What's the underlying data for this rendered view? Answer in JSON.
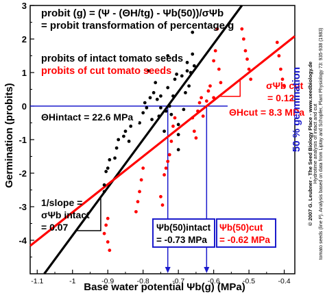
{
  "chart_data": {
    "type": "scatter",
    "xlabel": "Base water potential Ψb(g) (MPa)",
    "ylabel": "Germination (probits)",
    "right_axis_label": "50 % germination",
    "xlim": [
      -1.12,
      -0.37
    ],
    "ylim": [
      -5,
      3
    ],
    "x_ticks": [
      -1.1,
      -1.0,
      -0.9,
      -0.8,
      -0.7,
      -0.6,
      -0.5,
      -0.4
    ],
    "y_ticks": [
      -4,
      -3,
      -2,
      -1,
      0,
      1,
      2,
      3
    ],
    "x_tick_labels": [
      "-1.1",
      "-1",
      "-0.9",
      "-0.8",
      "-0.7",
      "-0.6",
      "-0.5",
      "-0.4"
    ],
    "y_tick_labels": [
      "-4",
      "-3",
      "-2",
      "-1",
      "0",
      "1",
      "2",
      "3"
    ],
    "grid": false,
    "equation_lines": [
      "probit (g) = (Ψ - (ΘH/tg) - Ψb(50))/σΨb",
      "= probit transformation of percentage g"
    ],
    "series": [
      {
        "name": "probits of intact tomato seeds",
        "color": "#000000",
        "points": [
          [
            -0.91,
            -2.55
          ],
          [
            -0.91,
            -2.35
          ],
          [
            -0.905,
            -1.95
          ],
          [
            -0.9,
            -1.85
          ],
          [
            -0.895,
            -1.6
          ],
          [
            -0.88,
            -1.55
          ],
          [
            -0.875,
            -1.25
          ],
          [
            -0.87,
            -1.0
          ],
          [
            -0.855,
            -0.9
          ],
          [
            -0.85,
            -0.75
          ],
          [
            -0.84,
            -1.05
          ],
          [
            -0.835,
            -0.6
          ],
          [
            -0.83,
            -0.45
          ],
          [
            -0.82,
            -0.35
          ],
          [
            -0.81,
            -0.5
          ],
          [
            -0.8,
            -0.2
          ],
          [
            -0.795,
            0.1
          ],
          [
            -0.79,
            -0.05
          ],
          [
            -0.78,
            0.25
          ],
          [
            -0.775,
            -0.4
          ],
          [
            -0.77,
            0.4
          ],
          [
            -0.76,
            0.2
          ],
          [
            -0.755,
            -0.3
          ],
          [
            -0.75,
            -0.05
          ],
          [
            -0.74,
            -0.75
          ],
          [
            -0.735,
            -0.15
          ],
          [
            -0.73,
            0.55
          ],
          [
            -0.725,
            0.0
          ],
          [
            -0.72,
            -0.25
          ],
          [
            -0.715,
            0.3
          ],
          [
            -0.71,
            0.8
          ],
          [
            -0.705,
            0.95
          ],
          [
            -0.7,
            -0.55
          ],
          [
            -0.7,
            -0.85
          ],
          [
            -0.7,
            -1.3
          ],
          [
            -0.685,
            -0.1
          ],
          [
            -0.68,
            0.4
          ],
          [
            -0.675,
            1.3
          ],
          [
            -0.675,
            1.05
          ],
          [
            -0.67,
            0.6
          ],
          [
            -0.665,
            1.0
          ],
          [
            -0.66,
            2.2
          ],
          [
            -0.66,
            1.55
          ],
          [
            -0.655,
            1.2
          ],
          [
            -0.785,
            1.05
          ],
          [
            -0.765,
            0.7
          ],
          [
            -0.75,
            0.3
          ],
          [
            -0.73,
            1.5
          ],
          [
            -0.69,
            0.9
          ]
        ]
      },
      {
        "name": "probits of cut tomato seeds",
        "color": "#ff0000",
        "points": [
          [
            -0.91,
            -3.8
          ],
          [
            -0.905,
            -3.55
          ],
          [
            -0.9,
            -4.05
          ],
          [
            -0.9,
            -3.35
          ],
          [
            -0.895,
            -4.3
          ],
          [
            -0.82,
            -3.15
          ],
          [
            -0.815,
            -2.85
          ],
          [
            -0.81,
            -2.55
          ],
          [
            -0.805,
            -2.2
          ],
          [
            -0.8,
            -1.85
          ],
          [
            -0.75,
            -2.7
          ],
          [
            -0.745,
            -2.95
          ],
          [
            -0.74,
            -2.05
          ],
          [
            -0.735,
            -1.85
          ],
          [
            -0.73,
            -1.65
          ],
          [
            -0.725,
            -1.45
          ],
          [
            -0.72,
            -1.05
          ],
          [
            -0.715,
            -0.6
          ],
          [
            -0.71,
            -0.35
          ],
          [
            -0.66,
            -0.35
          ],
          [
            -0.655,
            -0.75
          ],
          [
            -0.65,
            -0.95
          ],
          [
            -0.645,
            -0.15
          ],
          [
            -0.64,
            0.1
          ],
          [
            -0.635,
            0.25
          ],
          [
            -0.63,
            -0.3
          ],
          [
            -0.62,
            0.15
          ],
          [
            -0.615,
            0.45
          ],
          [
            -0.61,
            0.6
          ],
          [
            -0.6,
            0.25
          ],
          [
            -0.6,
            1.35
          ],
          [
            -0.595,
            1.65
          ],
          [
            -0.59,
            2.3
          ],
          [
            -0.585,
            1.1
          ],
          [
            -0.58,
            0.7
          ],
          [
            -0.52,
            2.3
          ],
          [
            -0.515,
            2.0
          ],
          [
            -0.51,
            1.65
          ],
          [
            -0.505,
            1.4
          ],
          [
            -0.5,
            1.1
          ],
          [
            -0.495,
            0.8
          ],
          [
            -0.42,
            1.9
          ],
          [
            -0.415,
            1.5
          ],
          [
            -0.41,
            1.1
          ],
          [
            -0.405,
            0.8
          ],
          [
            -0.4,
            0.6
          ]
        ]
      }
    ],
    "fit_lines": [
      {
        "name": "intact",
        "color": "#000000",
        "x_at_probit0": -0.73,
        "sigma": 0.07
      },
      {
        "name": "cut",
        "color": "#ff0000",
        "x_at_probit0": -0.62,
        "sigma": 0.12
      }
    ],
    "markers": [
      {
        "x": -0.73,
        "color": "#1a1acc"
      },
      {
        "x": -0.62,
        "color": "#1a1acc"
      }
    ],
    "annotations": {
      "legend_intact": "probits of intact tomato seeds",
      "legend_cut": "probits of cut tomato seeds",
      "theta_intact": "ΘHintact = 22.6 MPa",
      "theta_cut": "ΘHcut = 8.3 MPa",
      "slope_label_1": "1/slope =",
      "slope_label_2": "σΨb intact",
      "slope_label_3": "= 0.07",
      "sigma_cut_1": "σΨb cut",
      "sigma_cut_2": "= 0.12",
      "box_intact_1": "Ψb(50)intact",
      "box_intact_2": "= -0.73 MPa",
      "box_cut_1": "Ψb(50)cut",
      "box_cut_2": "= -0.62 MPa"
    },
    "side_text": [
      "© 2007 G. Leubner - The Seed Biology Place - www.seedbiology.de",
      "Hydrotime analysis of intact and cut",
      "tomato seeds (line P). Analysis based on data from Liptay and Schopfer, Plant Physiology 73: 935-938 (1983)"
    ]
  },
  "colors": {
    "axis": "#000000",
    "intact": "#000000",
    "cut": "#ff0000",
    "blue": "#1a1acc"
  }
}
